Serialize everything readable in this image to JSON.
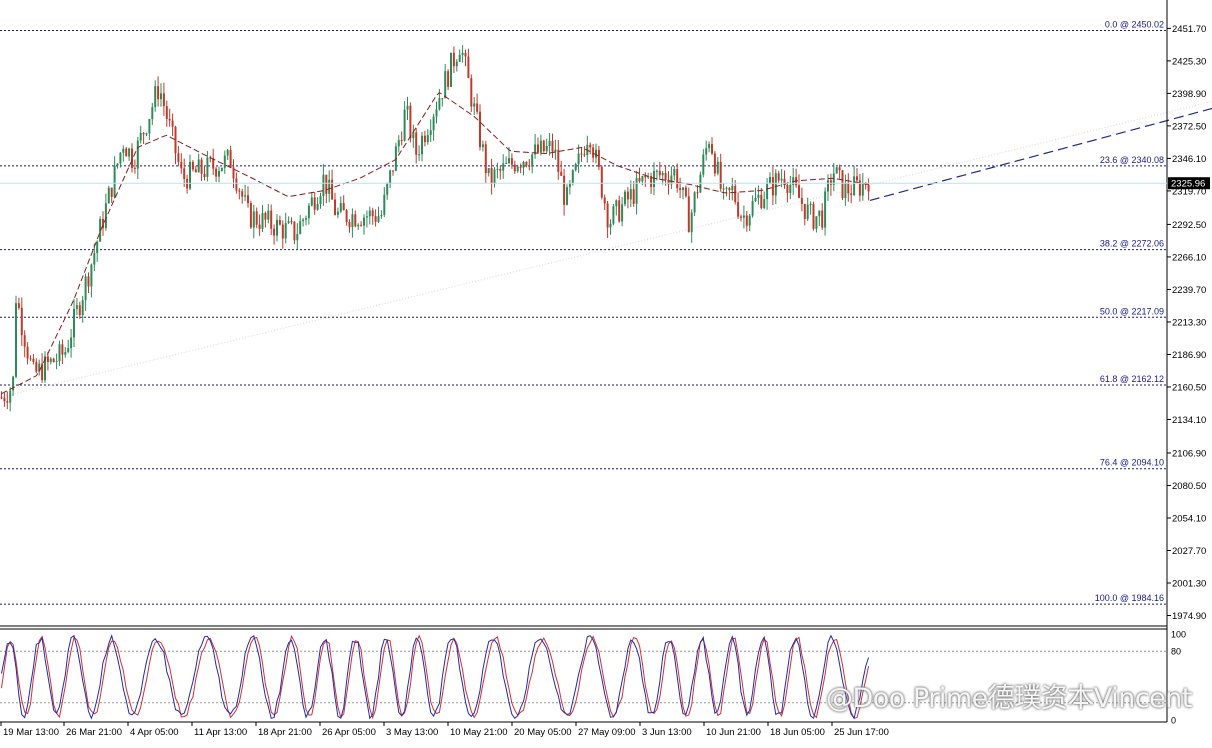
{
  "chart_data": [
    {
      "type": "candlestick",
      "ylim": [
        1968.0,
        2465.0
      ],
      "y_ticks": [
        "2451.70",
        "2425.30",
        "2398.90",
        "2372.50",
        "2346.10",
        "2319.70",
        "2292.50",
        "2266.10",
        "2239.70",
        "2213.30",
        "2186.90",
        "2160.50",
        "2134.10",
        "2106.90",
        "2080.50",
        "2054.10",
        "2027.70",
        "2001.30",
        "1974.90"
      ],
      "current_price": "2325.96",
      "fib_levels": [
        {
          "label": "0.0 @ 2450.02",
          "price": 2450.02
        },
        {
          "label": "23.6 @ 2340.08",
          "price": 2340.08
        },
        {
          "label": "38.2 @ 2272.06",
          "price": 2272.06
        },
        {
          "label": "50.0 @ 2217.09",
          "price": 2217.09
        },
        {
          "label": "61.8 @ 2162.12",
          "price": 2162.12
        },
        {
          "label": "76.4 @ 2094.10",
          "price": 2094.1
        },
        {
          "label": "100.0 @ 1984.16",
          "price": 1984.16
        }
      ],
      "x_labels": [
        "19 Mar 13:00",
        "26 Mar 21:00",
        "4 Apr 05:00",
        "11 Apr 13:00",
        "18 Apr 21:00",
        "26 Apr 05:00",
        "3 May 13:00",
        "10 May 21:00",
        "20 May 05:00",
        "27 May 09:00",
        "3 Jun 13:00",
        "10 Jun 21:00",
        "18 Jun 05:00",
        "25 Jun 17:00"
      ],
      "bar_count": 300,
      "path": [
        [
          0,
          2152
        ],
        [
          8,
          2162
        ],
        [
          10,
          2235
        ],
        [
          22,
          2170
        ],
        [
          44,
          2188
        ],
        [
          62,
          2258
        ],
        [
          85,
          2360
        ],
        [
          92,
          2345
        ],
        [
          110,
          2405
        ],
        [
          126,
          2330
        ],
        [
          160,
          2345
        ],
        [
          172,
          2300
        ],
        [
          205,
          2285
        ],
        [
          225,
          2330
        ],
        [
          234,
          2300
        ],
        [
          265,
          2300
        ],
        [
          282,
          2385
        ],
        [
          289,
          2350
        ],
        [
          310,
          2410
        ],
        [
          320,
          2440
        ],
        [
          340,
          2328
        ],
        [
          360,
          2345
        ],
        [
          385,
          2355
        ],
        [
          394,
          2310
        ],
        [
          410,
          2370
        ],
        [
          424,
          2295
        ],
        [
          450,
          2330
        ],
        [
          470,
          2335
        ],
        [
          480,
          2295
        ],
        [
          494,
          2365
        ],
        [
          504,
          2310
        ],
        [
          510,
          2320
        ],
        [
          517,
          2298
        ],
        [
          529,
          2315
        ],
        [
          546,
          2333
        ],
        [
          552,
          2322
        ],
        [
          565,
          2298
        ],
        [
          573,
          2300
        ],
        [
          580,
          2337
        ],
        [
          588,
          2320
        ],
        [
          600,
          2324
        ],
        [
          605,
          2330
        ]
      ],
      "moving_average": [
        [
          0,
          2155
        ],
        [
          25,
          2170
        ],
        [
          50,
          2230
        ],
        [
          70,
          2290
        ],
        [
          95,
          2355
        ],
        [
          115,
          2365
        ],
        [
          140,
          2350
        ],
        [
          175,
          2330
        ],
        [
          200,
          2315
        ],
        [
          225,
          2320
        ],
        [
          250,
          2330
        ],
        [
          275,
          2345
        ],
        [
          305,
          2400
        ],
        [
          330,
          2380
        ],
        [
          355,
          2352
        ],
        [
          380,
          2350
        ],
        [
          405,
          2355
        ],
        [
          430,
          2340
        ],
        [
          455,
          2330
        ],
        [
          480,
          2325
        ],
        [
          505,
          2318
        ],
        [
          530,
          2320
        ],
        [
          555,
          2328
        ],
        [
          580,
          2330
        ],
        [
          605,
          2325
        ]
      ],
      "trendline": [
        [
          517.5,
          2450
        ],
        [
          870,
          2312
        ]
      ],
      "oscillator": {
        "ylim": [
          0,
          100
        ],
        "ticks": [
          "100",
          "80",
          "0"
        ],
        "levels": [
          80,
          20
        ]
      }
    }
  ],
  "watermark": "@Doo Prime德璞资本Vincent"
}
